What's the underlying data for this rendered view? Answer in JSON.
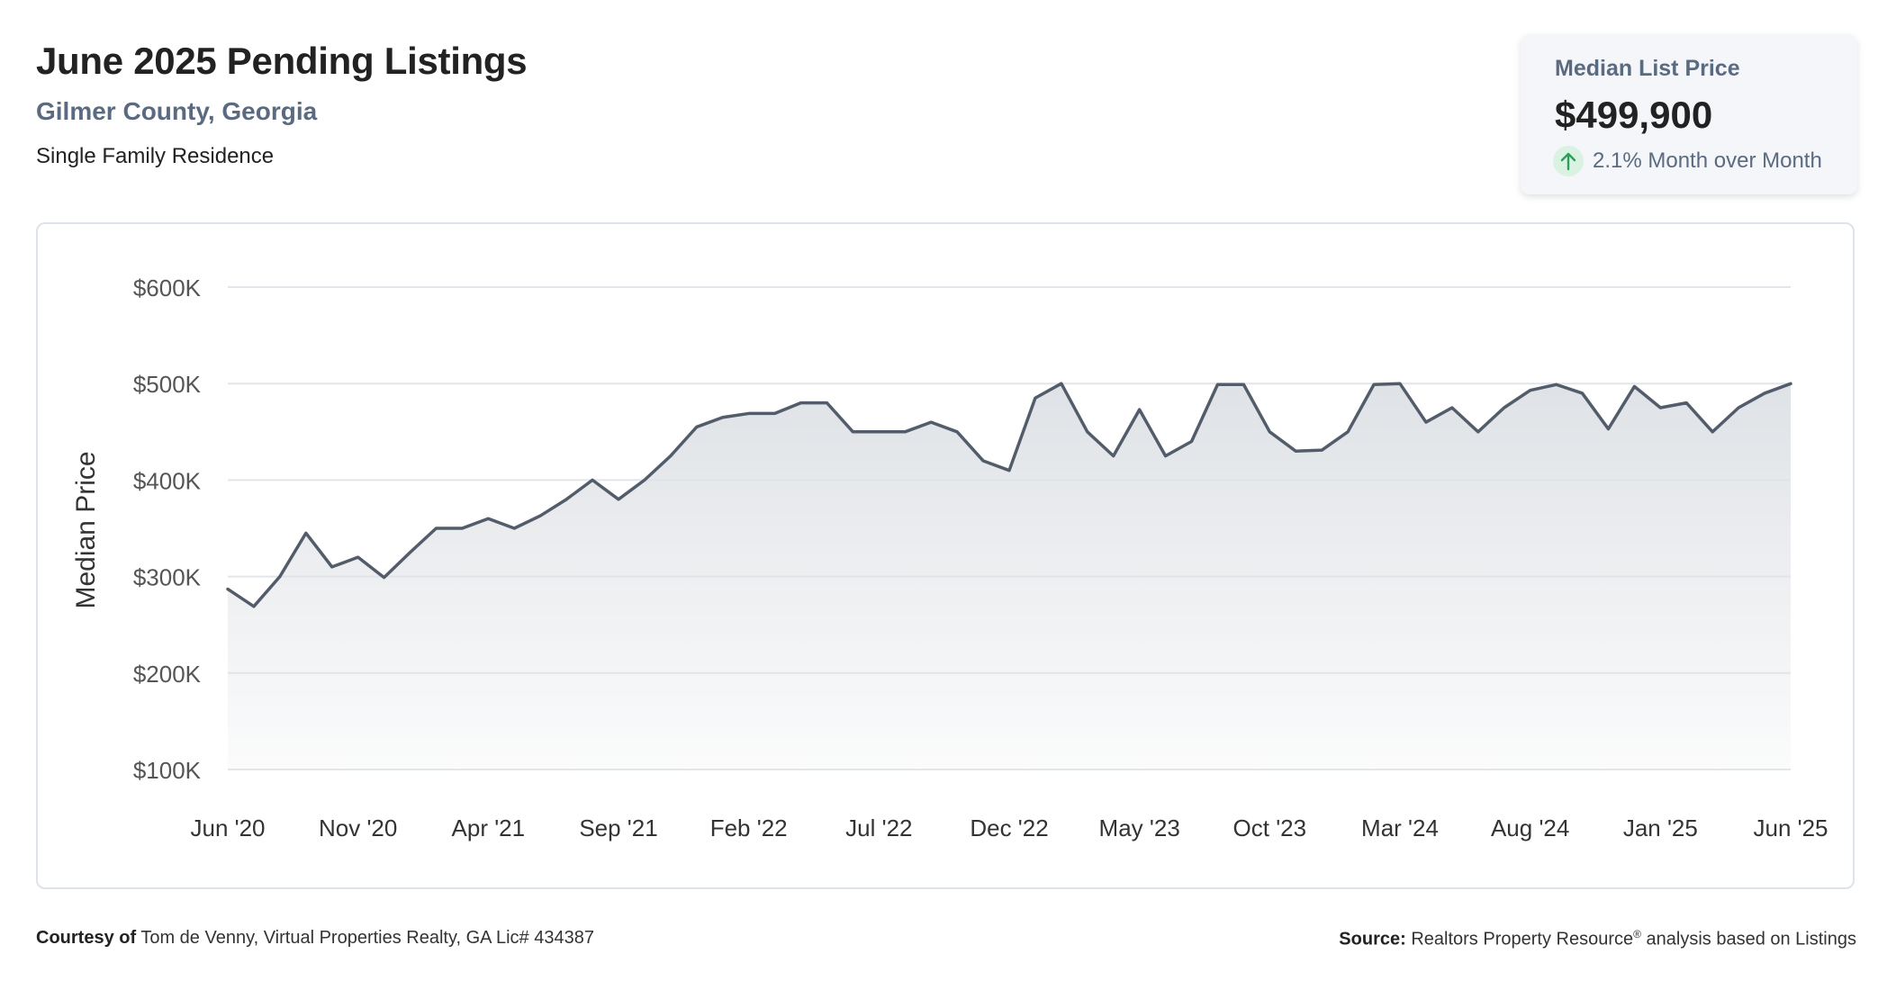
{
  "header": {
    "title": "June 2025 Pending Listings",
    "location": "Gilmer County, Georgia",
    "property_type": "Single Family Residence"
  },
  "stat_card": {
    "label": "Median List Price",
    "value": "$499,900",
    "change": "2.1% Month over Month",
    "direction_icon": "arrow-up-icon",
    "change_color": "#2e9e5b"
  },
  "colors": {
    "line": "#535c6a",
    "gridline": "#e2e5ea",
    "area_fill_top": "#dfe2e6",
    "card_background": "#f4f6f9",
    "subtitle": "#5a6a80"
  },
  "chart_data": {
    "type": "area",
    "title": "",
    "xlabel": "",
    "ylabel": "Median Price",
    "ylim": [
      100000,
      600000
    ],
    "yticks": [
      100000,
      200000,
      300000,
      400000,
      500000,
      600000
    ],
    "ytick_labels": [
      "$100K",
      "$200K",
      "$300K",
      "$400K",
      "$500K",
      "$600K"
    ],
    "xtick_labels": [
      "Jun '20",
      "Nov '20",
      "Apr '21",
      "Sep '21",
      "Feb '22",
      "Jul '22",
      "Dec '22",
      "May '23",
      "Oct '23",
      "Mar '24",
      "Aug '24",
      "Jan '25",
      "Jun '25"
    ],
    "xtick_every": 5,
    "grid": true,
    "legend": false,
    "series": [
      {
        "values": [
          287000,
          269000,
          300000,
          345000,
          310000,
          320000,
          299000,
          325000,
          350000,
          350000,
          360000,
          350000,
          363000,
          380000,
          400000,
          380000,
          400000,
          425000,
          455000,
          465000,
          469000,
          469000,
          480000,
          480000,
          450000,
          450000,
          450000,
          460000,
          450000,
          420000,
          410000,
          485000,
          500000,
          450000,
          425000,
          473000,
          425000,
          440000,
          499000,
          499000,
          450000,
          430000,
          431000,
          450000,
          499000,
          500000,
          460000,
          475000,
          450000,
          475000,
          493000,
          499000,
          490000,
          453000,
          497000,
          475000,
          480000,
          450000,
          475000,
          490000,
          499900
        ]
      }
    ]
  },
  "footer": {
    "courtesy_label": "Courtesy of",
    "courtesy_text": "Tom de Venny, Virtual Properties Realty, GA Lic# 434387",
    "source_label": "Source:",
    "source_text_a": "Realtors Property Resource",
    "source_sup": "®",
    "source_text_b": " analysis based on Listings"
  }
}
